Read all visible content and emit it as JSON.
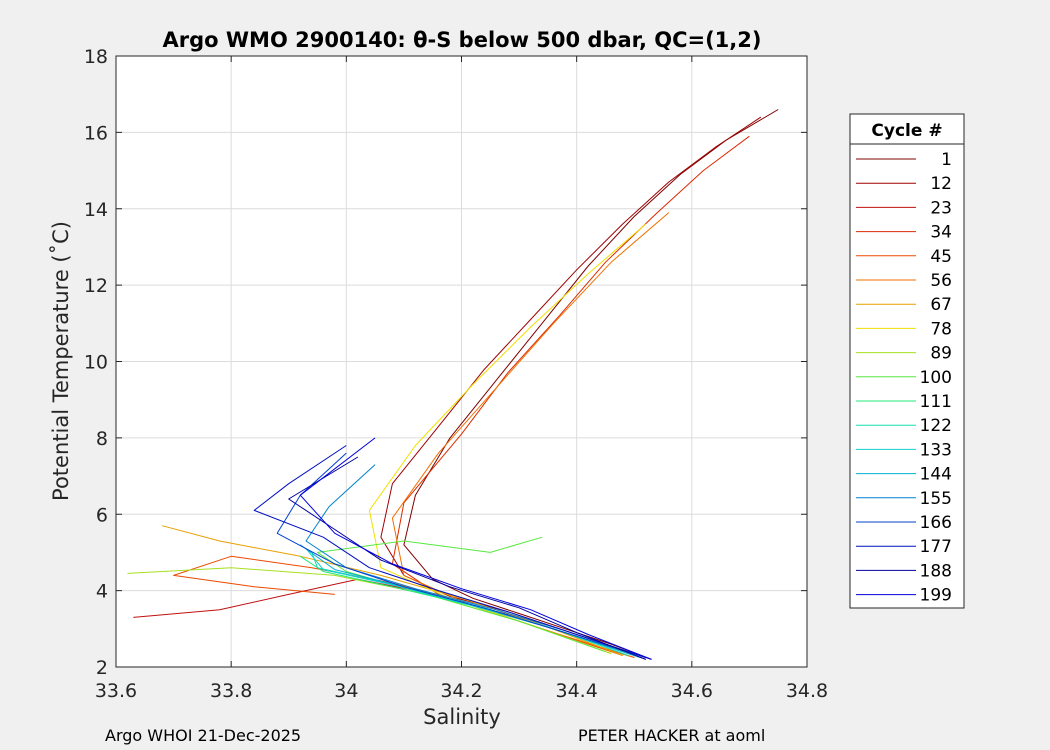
{
  "chart_data": {
    "type": "line",
    "title": "Argo WMO 2900140: θ-S below 500 dbar,  QC=(1,2)",
    "xlabel": "Salinity",
    "ylabel": "Potential Temperature (˚C)",
    "xlim": [
      33.6,
      34.8
    ],
    "ylim": [
      2,
      18
    ],
    "x_ticks": [
      "33.6",
      "33.8",
      "34",
      "34.2",
      "34.4",
      "34.6",
      "34.8"
    ],
    "y_ticks": [
      "2",
      "4",
      "6",
      "8",
      "10",
      "12",
      "14",
      "16",
      "18"
    ],
    "grid": true,
    "legend": {
      "title": "Cycle #",
      "placement": "right-outside",
      "entries": [
        {
          "label": "1",
          "color": "#7f0000"
        },
        {
          "label": "12",
          "color": "#a00000"
        },
        {
          "label": "23",
          "color": "#c01010"
        },
        {
          "label": "34",
          "color": "#dd2a00"
        },
        {
          "label": "45",
          "color": "#ec4a00"
        },
        {
          "label": "56",
          "color": "#f07000"
        },
        {
          "label": "67",
          "color": "#e8a000"
        },
        {
          "label": "78",
          "color": "#f0e000"
        },
        {
          "label": "89",
          "color": "#a8e020"
        },
        {
          "label": "100",
          "color": "#58e840"
        },
        {
          "label": "111",
          "color": "#20e878"
        },
        {
          "label": "122",
          "color": "#10e0b0"
        },
        {
          "label": "133",
          "color": "#10d0d0"
        },
        {
          "label": "144",
          "color": "#00b0d0"
        },
        {
          "label": "155",
          "color": "#0080d0"
        },
        {
          "label": "166",
          "color": "#0040d0"
        },
        {
          "label": "177",
          "color": "#0010c0"
        },
        {
          "label": "188",
          "color": "#0000a0"
        },
        {
          "label": "199",
          "color": "#0000e0"
        }
      ]
    },
    "series": [
      {
        "color": "#7f0000",
        "x": [
          34.53,
          34.46,
          34.38,
          34.3,
          34.22,
          34.15,
          34.1,
          34.12,
          34.18,
          34.26,
          34.34,
          34.42,
          34.5,
          34.58,
          34.66,
          34.75
        ],
        "y": [
          2.2,
          2.6,
          3.0,
          3.4,
          3.8,
          4.3,
          5.2,
          6.5,
          8.0,
          9.5,
          11.0,
          12.5,
          13.8,
          14.9,
          15.8,
          16.6
        ]
      },
      {
        "color": "#a00000",
        "x": [
          34.52,
          34.44,
          34.36,
          34.28,
          34.18,
          34.1,
          34.06,
          34.08,
          34.16,
          34.24,
          34.32,
          34.4,
          34.48,
          34.56,
          34.64,
          34.72
        ],
        "y": [
          2.2,
          2.65,
          3.05,
          3.45,
          3.85,
          4.4,
          5.4,
          6.8,
          8.3,
          9.8,
          11.1,
          12.4,
          13.6,
          14.7,
          15.6,
          16.4
        ]
      },
      {
        "color": "#c01010",
        "x": [
          34.5,
          34.4,
          34.3,
          34.2,
          34.12,
          34.02,
          33.9,
          33.78,
          33.63
        ],
        "y": [
          2.3,
          2.8,
          3.3,
          3.7,
          4.0,
          4.3,
          3.9,
          3.5,
          3.3
        ]
      },
      {
        "color": "#dd2a00",
        "x": [
          34.5,
          34.38,
          34.26,
          34.16,
          34.08,
          34.1,
          34.2,
          34.28,
          34.37,
          34.45,
          34.54,
          34.62,
          34.7
        ],
        "y": [
          2.25,
          2.8,
          3.4,
          3.9,
          4.7,
          6.3,
          8.1,
          9.7,
          11.2,
          12.6,
          13.9,
          15.0,
          15.9
        ]
      },
      {
        "color": "#ec4a00",
        "x": [
          34.48,
          34.34,
          34.2,
          34.08,
          33.94,
          33.8,
          33.7,
          33.84,
          33.98
        ],
        "y": [
          2.3,
          3.0,
          3.7,
          4.2,
          4.6,
          4.9,
          4.4,
          4.1,
          3.9
        ]
      },
      {
        "color": "#f07000",
        "x": [
          34.5,
          34.36,
          34.22,
          34.1,
          34.08,
          34.16,
          34.26,
          34.36,
          34.46,
          34.56
        ],
        "y": [
          2.25,
          2.9,
          3.6,
          4.4,
          5.9,
          7.6,
          9.3,
          11.0,
          12.6,
          13.9
        ]
      },
      {
        "color": "#e8a000",
        "x": [
          34.48,
          34.34,
          34.2,
          34.06,
          33.92,
          33.78,
          33.68
        ],
        "y": [
          2.3,
          3.1,
          3.8,
          4.4,
          4.9,
          5.3,
          5.7
        ]
      },
      {
        "color": "#f0e000",
        "x": [
          34.46,
          34.32,
          34.18,
          34.06,
          34.04,
          34.12,
          34.22,
          34.32,
          34.42,
          34.52
        ],
        "y": [
          2.35,
          3.1,
          3.8,
          4.6,
          6.1,
          7.8,
          9.4,
          10.9,
          12.3,
          13.6
        ]
      },
      {
        "color": "#a8e020",
        "x": [
          34.46,
          34.3,
          34.14,
          33.98,
          33.8,
          33.62
        ],
        "y": [
          2.35,
          3.2,
          3.9,
          4.4,
          4.6,
          4.45
        ]
      },
      {
        "color": "#58e840",
        "x": [
          34.45,
          34.3,
          34.14,
          34.0,
          33.95,
          34.1,
          34.25,
          34.34
        ],
        "y": [
          2.4,
          3.2,
          3.9,
          4.5,
          5.0,
          5.3,
          5.0,
          5.4
        ]
      },
      {
        "color": "#20e878",
        "x": [
          34.5,
          34.36,
          34.22,
          34.08,
          33.96,
          33.92
        ],
        "y": [
          2.3,
          3.0,
          3.6,
          4.1,
          4.5,
          4.9
        ]
      },
      {
        "color": "#10e0b0",
        "x": [
          34.49,
          34.35,
          34.21,
          34.07,
          33.95,
          33.94
        ],
        "y": [
          2.3,
          3.05,
          3.65,
          4.2,
          4.6,
          5.0
        ]
      },
      {
        "color": "#10d0d0",
        "x": [
          34.5,
          34.36,
          34.22,
          34.08,
          33.96,
          33.93
        ],
        "y": [
          2.3,
          3.0,
          3.6,
          4.15,
          4.55,
          5.1
        ]
      },
      {
        "color": "#00b0d0",
        "x": [
          34.51,
          34.37,
          34.24,
          34.1,
          33.98,
          33.92
        ],
        "y": [
          2.25,
          2.95,
          3.55,
          4.1,
          4.55,
          5.2
        ]
      },
      {
        "color": "#0080d0",
        "x": [
          34.52,
          34.38,
          34.26,
          34.12,
          34.0,
          33.93,
          33.97,
          34.05
        ],
        "y": [
          2.25,
          2.95,
          3.5,
          4.05,
          4.6,
          5.3,
          6.2,
          7.3
        ]
      },
      {
        "color": "#0040d0",
        "x": [
          34.52,
          34.38,
          34.25,
          34.1,
          33.98,
          33.88,
          33.92,
          34.0
        ],
        "y": [
          2.25,
          2.9,
          3.5,
          4.1,
          4.7,
          5.5,
          6.5,
          7.6
        ]
      },
      {
        "color": "#0010c0",
        "x": [
          34.53,
          34.4,
          34.28,
          34.16,
          34.04,
          33.96,
          33.84,
          33.9,
          34.0
        ],
        "y": [
          2.2,
          2.85,
          3.45,
          4.0,
          4.6,
          5.4,
          6.1,
          6.8,
          7.8
        ]
      },
      {
        "color": "#0000a0",
        "x": [
          34.52,
          34.4,
          34.3,
          34.18,
          34.06,
          33.98,
          33.9,
          34.02
        ],
        "y": [
          2.2,
          2.9,
          3.55,
          4.1,
          4.8,
          5.6,
          6.4,
          7.5
        ]
      },
      {
        "color": "#0000e0",
        "x": [
          34.53,
          34.42,
          34.32,
          34.2,
          34.08,
          33.98,
          33.92,
          34.05
        ],
        "y": [
          2.2,
          2.85,
          3.5,
          4.05,
          4.7,
          5.5,
          6.5,
          8.0
        ]
      }
    ]
  },
  "footer": {
    "left": "Argo WHOI 21-Dec-2025",
    "right": "PETER HACKER at aoml"
  }
}
